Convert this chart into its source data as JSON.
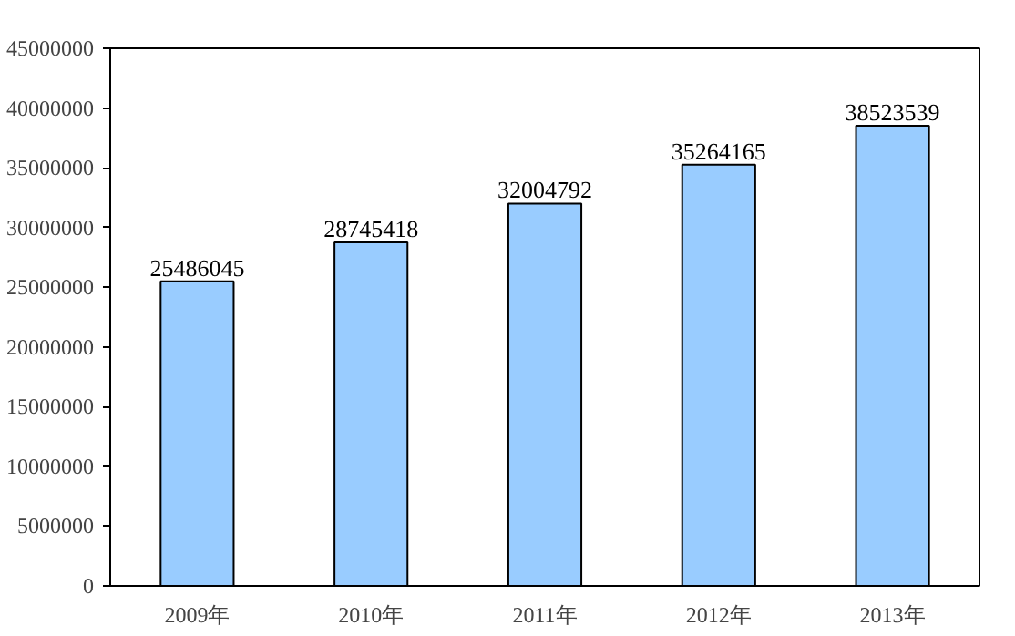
{
  "chart_data": {
    "type": "bar",
    "categories": [
      "2009年",
      "2010年",
      "2011年",
      "2012年",
      "2013年"
    ],
    "values": [
      25486045,
      28745418,
      32004792,
      35264165,
      38523539
    ],
    "color": "#99ccff",
    "data_labels": true,
    "grid": false,
    "ylim": [
      0,
      45000000
    ],
    "yticks": [
      0,
      5000000,
      10000000,
      15000000,
      20000000,
      25000000,
      30000000,
      35000000,
      40000000,
      45000000
    ]
  }
}
